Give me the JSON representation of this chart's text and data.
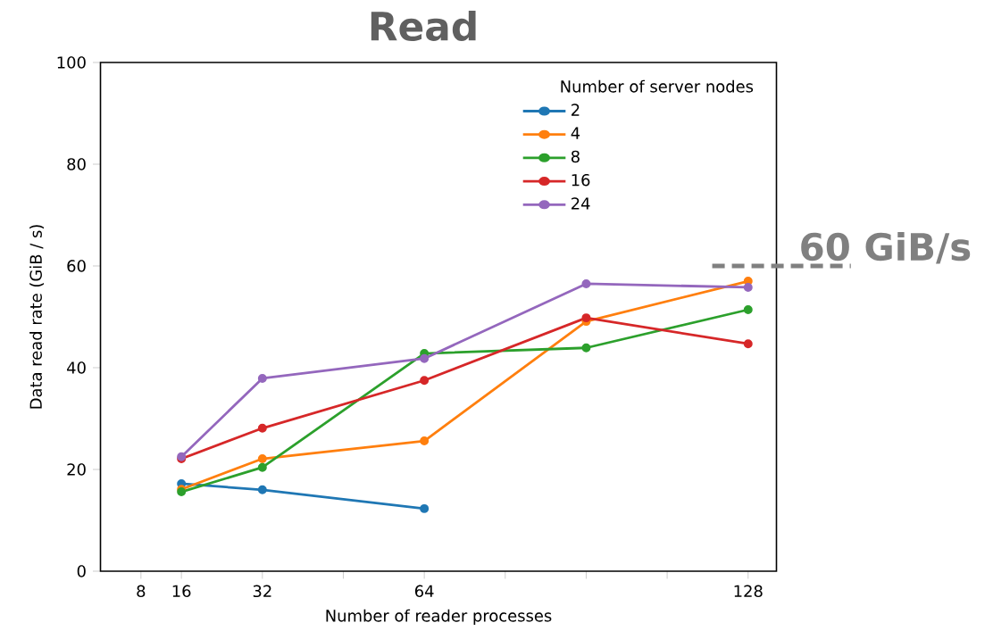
{
  "chart_data": {
    "type": "line",
    "title": "Read",
    "xlabel": "Number of reader processes",
    "ylabel": "Data read rate (GiB / s)",
    "legend_title": "Number of server nodes",
    "legend": "top right",
    "marker": "circle",
    "line_style": "solid",
    "xlim": [
      0,
      133.6
    ],
    "ylim": [
      0,
      100
    ],
    "xticks": [
      8,
      16,
      32,
      {
        "value": 48,
        "label": null
      },
      64,
      {
        "value": 80,
        "label": null
      },
      {
        "value": 96,
        "label": null
      },
      {
        "value": 112,
        "label": null
      },
      128
    ],
    "yticks": [
      0,
      20,
      40,
      60,
      80,
      100
    ],
    "ref_lines": [
      {
        "axis": "y",
        "value": 60,
        "label": "60 GiB/s",
        "color": "#808080",
        "line_style": "dashed"
      }
    ],
    "series": [
      {
        "name": "2",
        "color": "#1f77b4",
        "x": [
          16,
          32,
          64
        ],
        "values": [
          17.2,
          16.0,
          12.3
        ]
      },
      {
        "name": "4",
        "color": "#ff7f0e",
        "x": [
          16,
          32,
          64,
          96,
          128
        ],
        "values": [
          16.1,
          22.1,
          25.6,
          49.1,
          57.0
        ]
      },
      {
        "name": "8",
        "color": "#2ca02c",
        "x": [
          16,
          32,
          64,
          96,
          128
        ],
        "values": [
          15.6,
          20.4,
          42.8,
          43.9,
          51.4
        ]
      },
      {
        "name": "16",
        "color": "#d62728",
        "x": [
          16,
          32,
          64,
          96,
          128
        ],
        "values": [
          22.1,
          28.1,
          37.5,
          49.8,
          44.7
        ]
      },
      {
        "name": "24",
        "color": "#9467bd",
        "x": [
          16,
          32,
          64,
          96,
          128
        ],
        "values": [
          22.5,
          37.9,
          41.8,
          56.5,
          55.8
        ]
      }
    ]
  }
}
